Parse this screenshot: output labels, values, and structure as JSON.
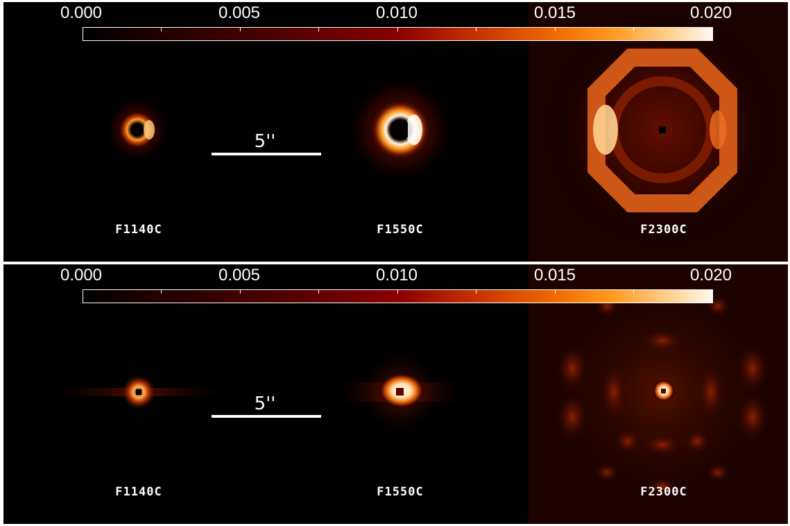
{
  "colorbar": {
    "tick_labels": [
      "0.000",
      "0.005",
      "0.010",
      "0.015",
      "0.020"
    ],
    "range": [
      0.0,
      0.02
    ]
  },
  "scale_bar": {
    "label": "5''"
  },
  "panels": [
    {
      "id": "top",
      "filters": [
        "F1140C",
        "F1550C",
        "F2300C"
      ]
    },
    {
      "id": "bottom",
      "filters": [
        "F1140C",
        "F1550C",
        "F2300C"
      ]
    }
  ],
  "colors": {
    "background": "#000000",
    "glow_dark": "#5a0a00",
    "glow_mid": "#c84a10",
    "glow_bright": "#fff3e0"
  }
}
